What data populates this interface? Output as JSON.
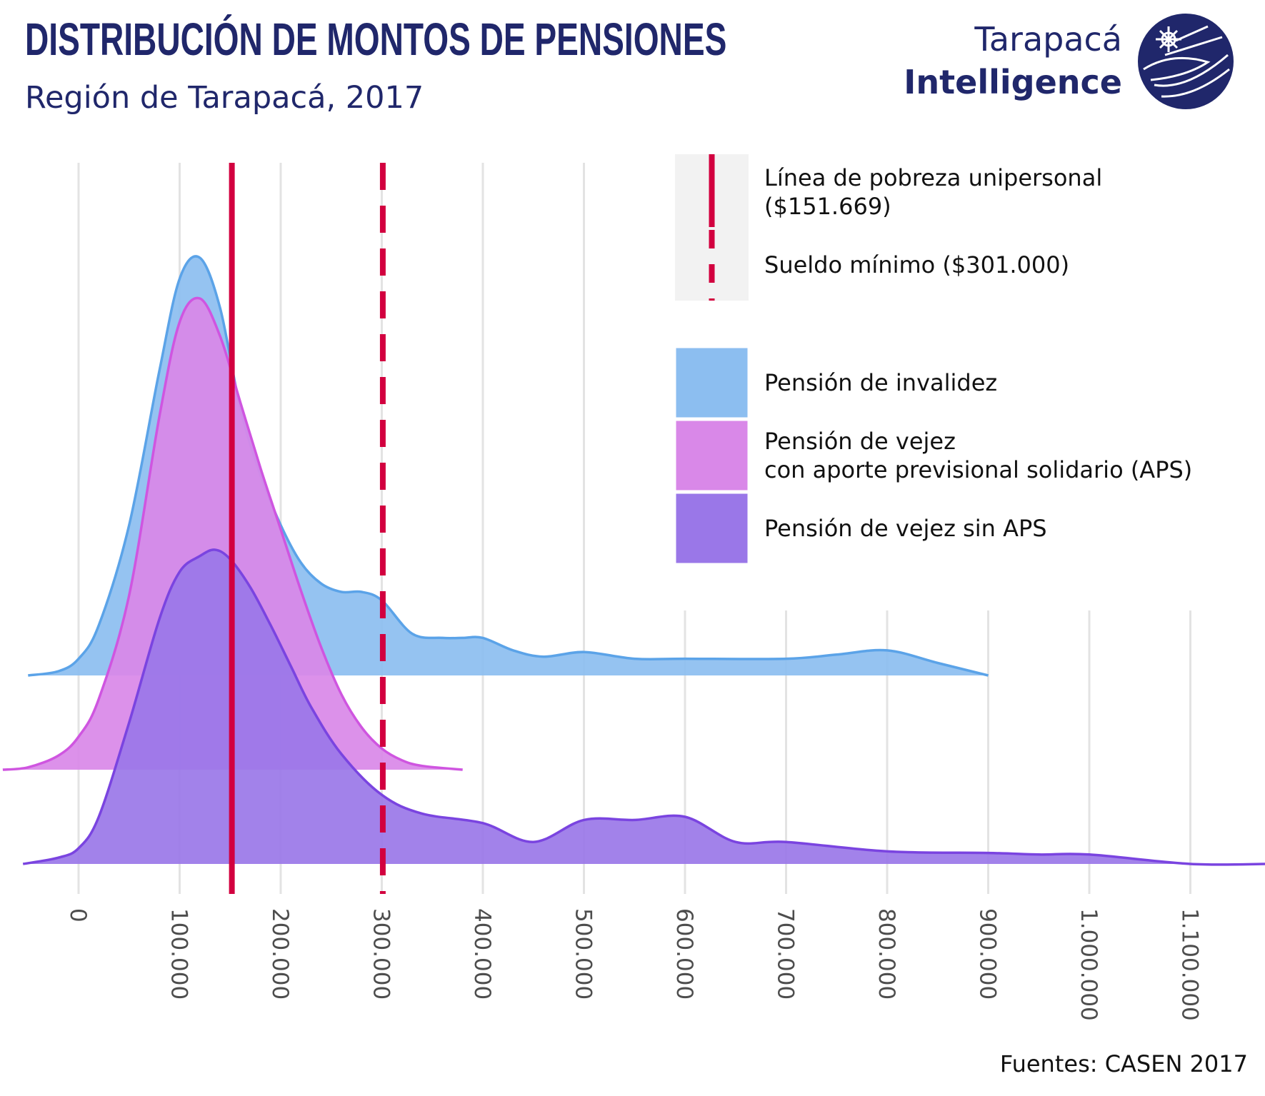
{
  "header": {
    "title": "DISTRIBUCIÓN DE MONTOS DE PENSIONES",
    "subtitle": "Región de Tarapacá, 2017"
  },
  "brand": {
    "line1": "Tarapacá",
    "line2": "Intelligence",
    "logo_icon": "tarapaca-intelligence-logo-icon",
    "color": "#20276b"
  },
  "source": "Fuentes: CASEN 2017",
  "chart_data": {
    "type": "area",
    "subtype": "ridgeline-density",
    "x_ticks": [
      0,
      100000,
      200000,
      300000,
      400000,
      500000,
      600000,
      700000,
      800000,
      900000,
      1000000,
      1100000
    ],
    "x_tick_labels": [
      "0",
      "100.000",
      "200.000",
      "300.000",
      "400.000",
      "500.000",
      "600.000",
      "700.000",
      "800.000",
      "900.000",
      "1.000.000",
      "1.100.000"
    ],
    "xlim": [
      -55000,
      1165000
    ],
    "grid": true,
    "reference_lines": [
      {
        "name": "Línea de pobreza unipersonal",
        "value_label": "($151.669)",
        "value": 151669,
        "style": "solid",
        "color": "#d2003f"
      },
      {
        "name": "Sueldo mínimo ($301.000)",
        "value": 301000,
        "style": "dashed",
        "color": "#d2003f"
      }
    ],
    "series": [
      {
        "name": "Pensión de invalidez",
        "fill": "#8cbef0",
        "stroke": "#5ba3e8",
        "x": [
          -50000,
          -20000,
          0,
          20000,
          50000,
          80000,
          100000,
          120000,
          140000,
          160000,
          180000,
          200000,
          220000,
          240000,
          260000,
          280000,
          300000,
          330000,
          360000,
          380000,
          400000,
          430000,
          460000,
          500000,
          550000,
          600000,
          700000,
          750000,
          800000,
          850000,
          900000
        ],
        "density": [
          0.0,
          0.01,
          0.04,
          0.12,
          0.36,
          0.73,
          0.95,
          1.0,
          0.88,
          0.64,
          0.48,
          0.36,
          0.27,
          0.22,
          0.2,
          0.2,
          0.18,
          0.1,
          0.09,
          0.09,
          0.09,
          0.06,
          0.045,
          0.056,
          0.04,
          0.04,
          0.04,
          0.05,
          0.06,
          0.03,
          0.0
        ]
      },
      {
        "name": "Pensión de vejez con aporte previsional solidario (APS)",
        "legend_lines": [
          "Pensión de vejez",
          "con aporte previsional solidario (APS)"
        ],
        "fill": "#d988e8",
        "stroke": "#cf55e0",
        "x": [
          -75000,
          -50000,
          -20000,
          0,
          20000,
          50000,
          80000,
          100000,
          120000,
          140000,
          160000,
          180000,
          200000,
          220000,
          240000,
          260000,
          280000,
          300000,
          320000,
          340000,
          380000
        ],
        "density": [
          0.0,
          0.005,
          0.03,
          0.07,
          0.15,
          0.37,
          0.75,
          0.95,
          1.0,
          0.92,
          0.78,
          0.64,
          0.51,
          0.38,
          0.26,
          0.16,
          0.09,
          0.045,
          0.02,
          0.008,
          0.0
        ]
      },
      {
        "name": "Pensión de vejez sin APS",
        "fill": "#9a77e8",
        "stroke": "#7a44e0",
        "x": [
          -55000,
          -20000,
          0,
          20000,
          50000,
          80000,
          100000,
          120000,
          135000,
          150000,
          170000,
          190000,
          210000,
          230000,
          260000,
          300000,
          340000,
          400000,
          450000,
          500000,
          550000,
          600000,
          650000,
          700000,
          800000,
          900000,
          950000,
          1000000,
          1100000,
          1200000
        ],
        "density": [
          0.0,
          0.02,
          0.05,
          0.15,
          0.45,
          0.78,
          0.93,
          0.98,
          1.0,
          0.97,
          0.88,
          0.76,
          0.63,
          0.5,
          0.35,
          0.22,
          0.16,
          0.13,
          0.07,
          0.14,
          0.14,
          0.15,
          0.07,
          0.07,
          0.04,
          0.035,
          0.03,
          0.03,
          0.0,
          0.0
        ]
      }
    ],
    "legend_position": "top-right"
  }
}
